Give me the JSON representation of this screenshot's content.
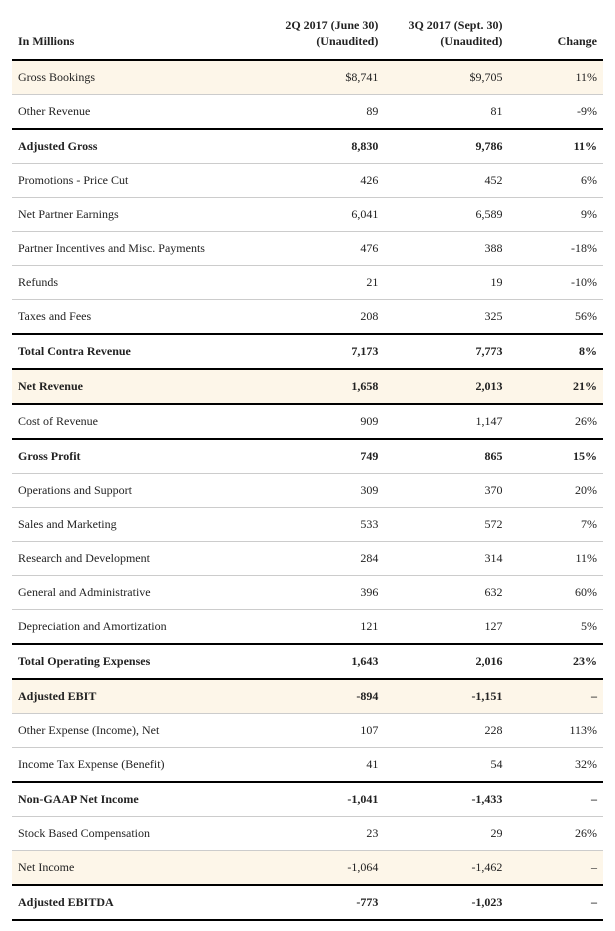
{
  "table": {
    "header": {
      "col0": "In Millions",
      "col1_line1": "2Q 2017 (June 30)",
      "col1_line2": "(Unaudited)",
      "col2_line1": "3Q 2017 (Sept. 30)",
      "col2_line2": "(Unaudited)",
      "col3": "Change"
    },
    "rows": [
      {
        "label": "Gross Bookings",
        "q2": "$8,741",
        "q3": "$9,705",
        "change": "11%",
        "classes": "highlight"
      },
      {
        "label": "Other Revenue",
        "q2": "89",
        "q3": "81",
        "change": "-9%",
        "classes": ""
      },
      {
        "label": "Adjusted Gross",
        "q2": "8,830",
        "q3": "9,786",
        "change": "11%",
        "classes": "bold heavy-top"
      },
      {
        "label": "Promotions - Price Cut",
        "q2": "426",
        "q3": "452",
        "change": "6%",
        "classes": ""
      },
      {
        "label": "Net Partner Earnings",
        "q2": "6,041",
        "q3": "6,589",
        "change": "9%",
        "classes": ""
      },
      {
        "label": "Partner Incentives and Misc. Payments",
        "q2": "476",
        "q3": "388",
        "change": "-18%",
        "classes": ""
      },
      {
        "label": "Refunds",
        "q2": "21",
        "q3": "19",
        "change": "-10%",
        "classes": ""
      },
      {
        "label": "Taxes and Fees",
        "q2": "208",
        "q3": "325",
        "change": "56%",
        "classes": ""
      },
      {
        "label": "Total Contra Revenue",
        "q2": "7,173",
        "q3": "7,773",
        "change": "8%",
        "classes": "bold heavy-top heavy-bottom"
      },
      {
        "label": "Net Revenue",
        "q2": "1,658",
        "q3": "2,013",
        "change": "21%",
        "classes": "bold highlight heavy-bottom"
      },
      {
        "label": "Cost of Revenue",
        "q2": "909",
        "q3": "1,147",
        "change": "26%",
        "classes": ""
      },
      {
        "label": "Gross Profit",
        "q2": "749",
        "q3": "865",
        "change": "15%",
        "classes": "bold heavy-top"
      },
      {
        "label": "Operations and Support",
        "q2": "309",
        "q3": "370",
        "change": "20%",
        "classes": ""
      },
      {
        "label": "Sales and Marketing",
        "q2": "533",
        "q3": "572",
        "change": "7%",
        "classes": ""
      },
      {
        "label": "Research and Development",
        "q2": "284",
        "q3": "314",
        "change": "11%",
        "classes": ""
      },
      {
        "label": "General and Administrative",
        "q2": "396",
        "q3": "632",
        "change": "60%",
        "classes": ""
      },
      {
        "label": "Depreciation and Amortization",
        "q2": "121",
        "q3": "127",
        "change": "5%",
        "classes": ""
      },
      {
        "label": "Total Operating Expenses",
        "q2": "1,643",
        "q3": "2,016",
        "change": "23%",
        "classes": "bold heavy-top heavy-bottom"
      },
      {
        "label": "Adjusted EBIT",
        "q2": "-894",
        "q3": "-1,151",
        "change": "–",
        "classes": "bold highlight"
      },
      {
        "label": "Other Expense (Income), Net",
        "q2": "107",
        "q3": "228",
        "change": "113%",
        "classes": ""
      },
      {
        "label": "Income Tax Expense (Benefit)",
        "q2": "41",
        "q3": "54",
        "change": "32%",
        "classes": ""
      },
      {
        "label": "Non-GAAP Net Income",
        "q2": "-1,041",
        "q3": "-1,433",
        "change": "–",
        "classes": "bold heavy-top"
      },
      {
        "label": "Stock Based Compensation",
        "q2": "23",
        "q3": "29",
        "change": "26%",
        "classes": ""
      },
      {
        "label": "Net Income",
        "q2": "-1,064",
        "q3": "-1,462",
        "change": "–",
        "classes": "highlight heavy-bottom"
      },
      {
        "label": "Adjusted EBITDA",
        "q2": "-773",
        "q3": "-1,023",
        "change": "–",
        "classes": "bold heavy-bottom"
      }
    ]
  }
}
